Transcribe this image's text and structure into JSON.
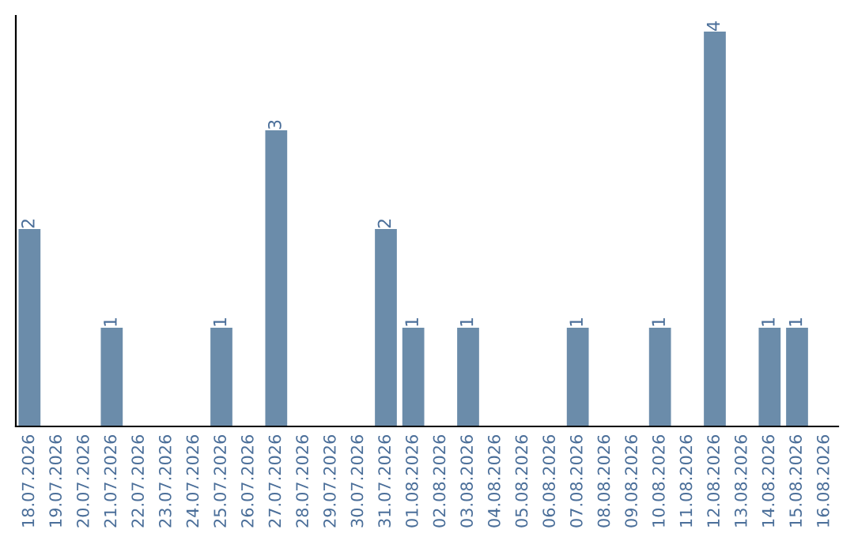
{
  "chart_data": {
    "type": "bar",
    "categories": [
      "18.07.2026",
      "19.07.2026",
      "20.07.2026",
      "21.07.2026",
      "22.07.2026",
      "23.07.2026",
      "24.07.2026",
      "25.07.2026",
      "26.07.2026",
      "27.07.2026",
      "28.07.2026",
      "29.07.2026",
      "30.07.2026",
      "31.07.2026",
      "01.08.2026",
      "02.08.2026",
      "03.08.2026",
      "04.08.2026",
      "05.08.2026",
      "06.08.2026",
      "07.08.2026",
      "08.08.2026",
      "09.08.2026",
      "10.08.2026",
      "11.08.2026",
      "12.08.2026",
      "13.08.2026",
      "14.08.2026",
      "15.08.2026",
      "16.08.2026"
    ],
    "values": [
      2,
      0,
      0,
      1,
      0,
      0,
      0,
      1,
      0,
      3,
      0,
      0,
      0,
      2,
      1,
      0,
      1,
      0,
      0,
      0,
      1,
      0,
      0,
      1,
      0,
      4,
      0,
      1,
      1,
      0
    ],
    "value_labels": [
      "2",
      null,
      null,
      "1",
      null,
      null,
      null,
      "1",
      null,
      "3",
      null,
      null,
      null,
      "2",
      "1",
      null,
      "1",
      null,
      null,
      null,
      "1",
      null,
      null,
      "1",
      null,
      "4",
      null,
      "1",
      "1",
      null
    ],
    "color": "#6b8caa",
    "tick_labels": "x",
    "grid": false
  }
}
